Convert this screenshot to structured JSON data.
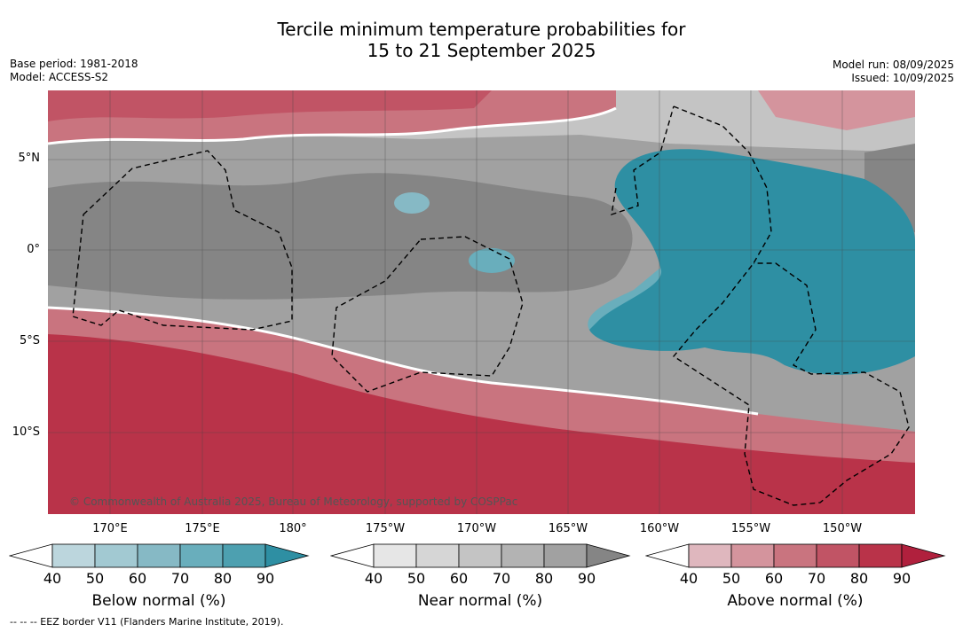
{
  "title": {
    "line1": "Tercile minimum temperature probabilities for",
    "line2": "15 to 21 September 2025"
  },
  "meta_left": {
    "base_period": "Base period: 1981-2018",
    "model": "Model: ACCESS-S2"
  },
  "meta_right": {
    "model_run": "Model run: 08/09/2025",
    "issued": "Issued: 10/09/2025"
  },
  "map": {
    "credit": "© Commonwealth of Australia 2025, Bureau of Meteorology, supported by COSPPac",
    "lat_labels": [
      "5°N",
      "0°",
      "5°S",
      "10°S"
    ],
    "lon_labels": [
      "170°E",
      "175°E",
      "180°",
      "175°W",
      "170°W",
      "165°W",
      "160°W",
      "155°W",
      "150°W"
    ]
  },
  "colorbars": [
    {
      "title": "Below normal (%)",
      "ticks": [
        "40",
        "50",
        "60",
        "70",
        "80",
        "90"
      ],
      "colors": [
        "#ffffff",
        "#bcd6dd",
        "#a2c9d2",
        "#86b9c5",
        "#69aebc",
        "#4da0b0",
        "#2e8fa3"
      ]
    },
    {
      "title": "Near normal (%)",
      "ticks": [
        "40",
        "50",
        "60",
        "70",
        "80",
        "90"
      ],
      "colors": [
        "#ffffff",
        "#e6e6e6",
        "#d6d6d6",
        "#c4c4c4",
        "#b3b3b3",
        "#a1a1a1",
        "#858585"
      ]
    },
    {
      "title": "Above normal (%)",
      "ticks": [
        "40",
        "50",
        "60",
        "70",
        "80",
        "90"
      ],
      "colors": [
        "#ffffff",
        "#dfb7be",
        "#d4949d",
        "#c9747f",
        "#c15465",
        "#b93349",
        "#b0203d"
      ]
    }
  ],
  "footnote": "-- -- -- EEZ border V11 (Flanders Marine Institute, 2019)."
}
